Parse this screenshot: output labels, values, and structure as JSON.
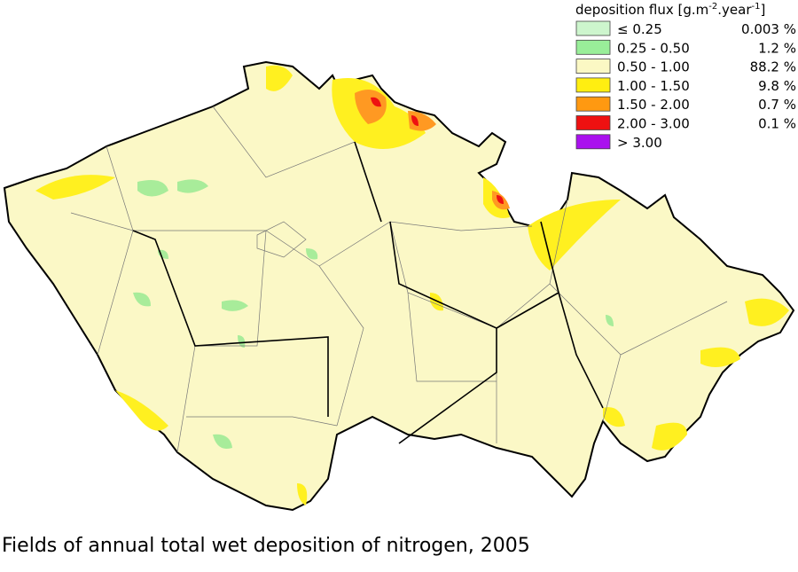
{
  "legend": {
    "title": [
      "deposition flux [g.m",
      "-2",
      ".year",
      "-1",
      "]"
    ],
    "items": [
      {
        "label": "≤ 0.25",
        "share": "0.003 %",
        "color": "#cdf5cd"
      },
      {
        "label": "0.25 - 0.50",
        "share": "1.2 %",
        "color": "#99ee99"
      },
      {
        "label": "0.50 - 1.00",
        "share": "88.2 %",
        "color": "#fbf8c4"
      },
      {
        "label": "1.00 - 1.50",
        "share": "9.8 %",
        "color": "#ffee11"
      },
      {
        "label": "1.50 - 2.00",
        "share": "0.7 %",
        "color": "#ff9911"
      },
      {
        "label": "2.00 - 3.00",
        "share": "0.1 %",
        "color": "#ee1111"
      },
      {
        "label": "> 3.00",
        "color": "#aa11ee"
      }
    ]
  },
  "caption": "Fields of annual total wet deposition of nitrogen, 2005"
}
